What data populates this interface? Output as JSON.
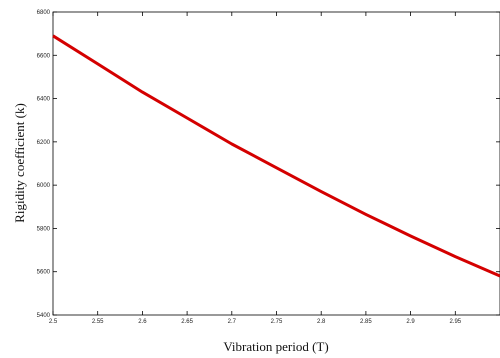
{
  "chart_data": {
    "type": "line",
    "title": "",
    "xlabel": "Vibration period (T)",
    "ylabel": "Rigidity coefficient (k)",
    "xlim": [
      2.5,
      3.0
    ],
    "ylim": [
      5400,
      6800
    ],
    "grid": false,
    "x_ticks": [
      2.5,
      2.55,
      2.6,
      2.65,
      2.7,
      2.75,
      2.8,
      2.85,
      2.9,
      2.95
    ],
    "x_tick_labels": [
      "2.5",
      "2.55",
      "2.6",
      "2.65",
      "2.7",
      "2.75",
      "2.8",
      "2.85",
      "2.9",
      "2.95"
    ],
    "y_ticks": [
      5400,
      5600,
      5800,
      6000,
      6200,
      6400,
      6600,
      6800
    ],
    "y_tick_labels": [
      "5400",
      "5600",
      "5800",
      "6000",
      "6200",
      "6400",
      "6600",
      "6800"
    ],
    "series": [
      {
        "color": "#d40000",
        "x": [
          2.5,
          2.55,
          2.6,
          2.65,
          2.7,
          2.75,
          2.8,
          2.85,
          2.9,
          2.95,
          3.0
        ],
        "y": [
          6690,
          6560,
          6430,
          6310,
          6190,
          6080,
          5970,
          5865,
          5765,
          5670,
          5580
        ]
      }
    ]
  }
}
